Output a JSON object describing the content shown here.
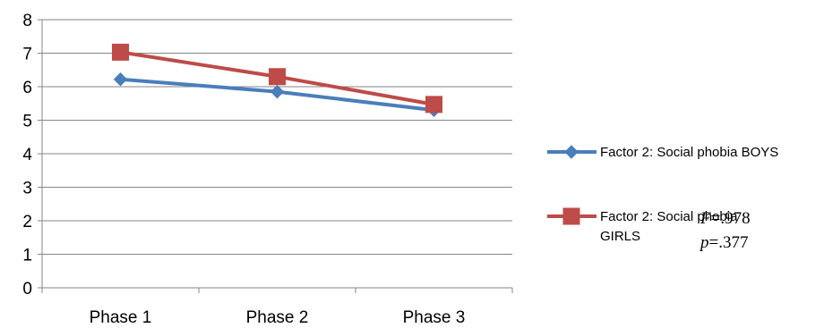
{
  "chart_data": {
    "type": "line",
    "categories": [
      "Phase 1",
      "Phase 2",
      "Phase 3"
    ],
    "series": [
      {
        "name": "Factor 2: Social phobia BOYS",
        "values": [
          6.22,
          5.85,
          5.3
        ],
        "color": "#4A7EBB",
        "marker": "diamond"
      },
      {
        "name": "Factor 2: Social phobia GIRLS",
        "values": [
          7.03,
          6.3,
          5.47
        ],
        "color": "#BE4B48",
        "marker": "square"
      }
    ],
    "ylim": [
      0,
      8
    ],
    "yticks": [
      "0",
      "1",
      "2",
      "3",
      "4",
      "5",
      "6",
      "7",
      "8"
    ],
    "grid": true,
    "legend_position": "right",
    "annotations": {
      "f_label": "F",
      "f_value": "=.978",
      "p_label": "p",
      "p_value": "=.377"
    }
  }
}
